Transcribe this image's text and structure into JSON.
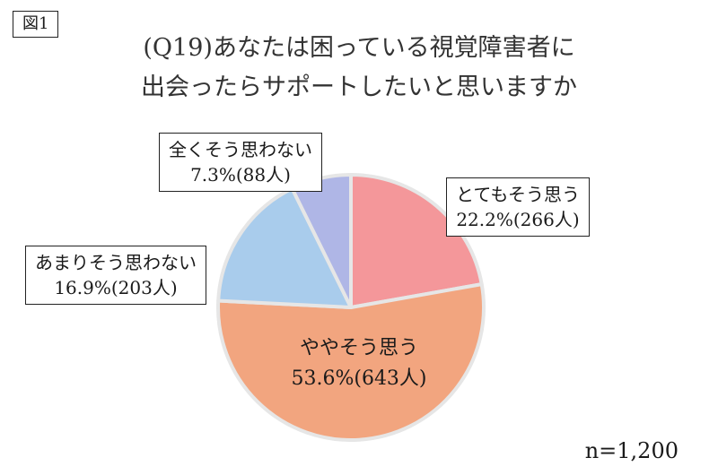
{
  "figure_label": "図1",
  "chart_data": {
    "type": "pie",
    "title_lines": [
      "(Q19)あなたは困っている視覚障害者に",
      "出会ったらサポートしたいと思いますか"
    ],
    "n_note": "n=1,200",
    "slices": [
      {
        "label": "とてもそう思う",
        "percent": 22.2,
        "count": 266,
        "value_text": "22.2%(266人)",
        "color": "#f4979a"
      },
      {
        "label": "ややそう思う",
        "percent": 53.6,
        "count": 643,
        "value_text": "53.6%(643人)",
        "color": "#f2a57f"
      },
      {
        "label": "あまりそう思わない",
        "percent": 16.9,
        "count": 203,
        "value_text": "16.9%(203人)",
        "color": "#a9ccec"
      },
      {
        "label": "全くそう思わない",
        "percent": 7.3,
        "count": 88,
        "value_text": "7.3%(88人)",
        "color": "#afb6e6"
      }
    ]
  }
}
